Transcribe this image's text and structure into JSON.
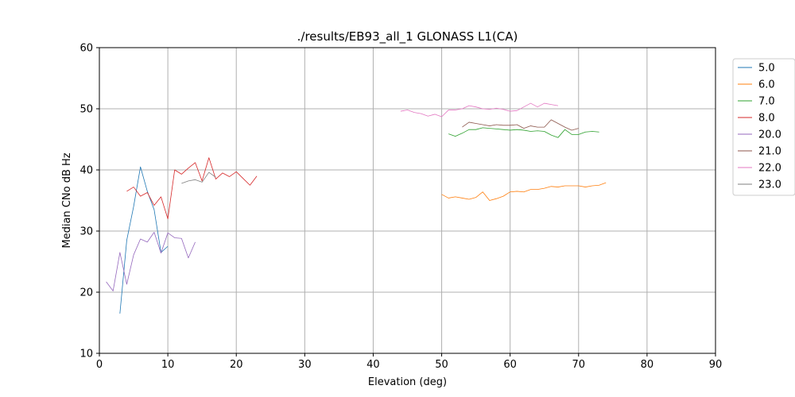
{
  "chart_data": {
    "type": "line",
    "title": "./results/EB93_all_1 GLONASS L1(CA)",
    "xlabel": "Elevation (deg)",
    "ylabel": "Median CNo dB Hz",
    "xlim": [
      0,
      90
    ],
    "ylim": [
      10,
      60
    ],
    "xticks": [
      0,
      10,
      20,
      30,
      40,
      50,
      60,
      70,
      80,
      90
    ],
    "yticks": [
      10,
      20,
      30,
      40,
      50,
      60
    ],
    "grid": true,
    "legend_position": "outside-right",
    "series": [
      {
        "name": "5.0",
        "color": "#1f77b4",
        "x": [
          3,
          4,
          5,
          6,
          7,
          8,
          9,
          10
        ],
        "y": [
          16.5,
          28.5,
          34.0,
          40.5,
          36.5,
          33.5,
          26.5,
          27.5
        ]
      },
      {
        "name": "6.0",
        "color": "#ff7f0e",
        "x": [
          50,
          51,
          52,
          53,
          54,
          55,
          56,
          57,
          58,
          59,
          60,
          61,
          62,
          63,
          64,
          65,
          66,
          67,
          68,
          69,
          70,
          71,
          72,
          73,
          74
        ],
        "y": [
          36.0,
          35.4,
          35.6,
          35.4,
          35.2,
          35.5,
          36.4,
          35.0,
          35.3,
          35.7,
          36.4,
          36.5,
          36.4,
          36.8,
          36.8,
          37.0,
          37.3,
          37.2,
          37.4,
          37.4,
          37.4,
          37.2,
          37.4,
          37.5,
          37.9
        ]
      },
      {
        "name": "7.0",
        "color": "#2ca02c",
        "x": [
          51,
          52,
          53,
          54,
          55,
          56,
          57,
          58,
          59,
          60,
          61,
          62,
          63,
          64,
          65,
          66,
          67,
          68,
          69,
          70,
          71,
          72,
          73
        ],
        "y": [
          45.9,
          45.5,
          46.0,
          46.6,
          46.6,
          46.9,
          46.8,
          46.7,
          46.6,
          46.5,
          46.6,
          46.5,
          46.3,
          46.4,
          46.3,
          45.7,
          45.3,
          46.6,
          45.8,
          45.8,
          46.2,
          46.3,
          46.2
        ]
      },
      {
        "name": "8.0",
        "color": "#d62728",
        "x": [
          4,
          5,
          6,
          7,
          8,
          9,
          10,
          11,
          12,
          13,
          14,
          15,
          16,
          17,
          18,
          19,
          20,
          21,
          22,
          23
        ],
        "y": [
          36.5,
          37.2,
          35.7,
          36.3,
          34.2,
          35.6,
          32.0,
          40.0,
          39.3,
          40.3,
          41.2,
          38.2,
          42.0,
          38.5,
          39.5,
          38.9,
          39.7,
          38.6,
          37.5,
          39.0
        ]
      },
      {
        "name": "20.0",
        "color": "#9467bd",
        "x": [
          1,
          2,
          3,
          4,
          5,
          6,
          7,
          8,
          9,
          10,
          11,
          12,
          13,
          14
        ],
        "y": [
          21.7,
          20.2,
          26.5,
          21.3,
          26.1,
          28.7,
          28.2,
          29.8,
          26.4,
          29.7,
          28.9,
          28.8,
          25.6,
          28.2
        ]
      },
      {
        "name": "21.0",
        "color": "#8c564b",
        "x": [
          53,
          54,
          55,
          56,
          57,
          58,
          59,
          60,
          61,
          62,
          63,
          64,
          65,
          66,
          67,
          68,
          69,
          70
        ],
        "y": [
          47.0,
          47.8,
          47.6,
          47.4,
          47.2,
          47.4,
          47.3,
          47.3,
          47.4,
          46.8,
          47.2,
          47.0,
          47.0,
          48.2,
          47.6,
          47.0,
          46.5,
          46.8
        ]
      },
      {
        "name": "22.0",
        "color": "#e377c2",
        "x": [
          44,
          45,
          46,
          47,
          48,
          49,
          50,
          51,
          52,
          53,
          54,
          55,
          56,
          57,
          58,
          59,
          60,
          61,
          62,
          63,
          64,
          65,
          66,
          67
        ],
        "y": [
          49.6,
          49.8,
          49.4,
          49.2,
          48.8,
          49.1,
          48.7,
          49.8,
          49.8,
          50.0,
          50.5,
          50.3,
          50.0,
          49.9,
          50.1,
          49.9,
          49.6,
          49.7,
          50.3,
          50.9,
          50.3,
          50.9,
          50.7,
          50.5
        ]
      },
      {
        "name": "23.0",
        "color": "#7f7f7f",
        "x": [
          12,
          13,
          14,
          15,
          16,
          17
        ],
        "y": [
          37.8,
          38.2,
          38.4,
          38.0,
          39.6,
          38.8
        ]
      }
    ]
  }
}
